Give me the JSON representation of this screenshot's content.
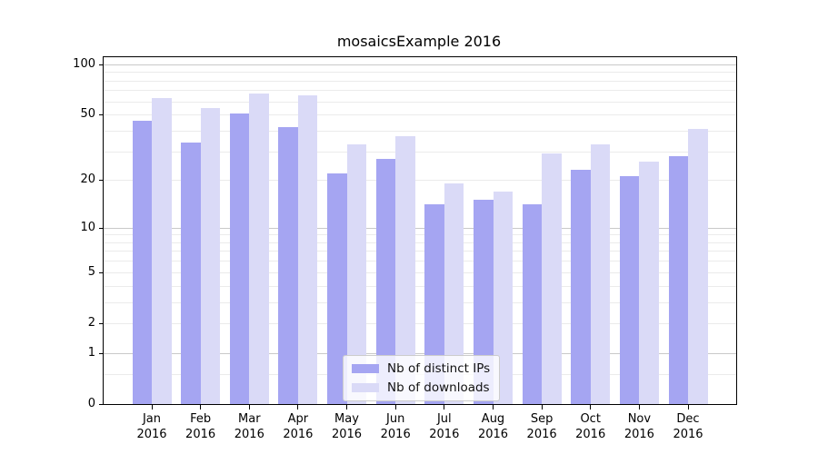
{
  "chart_data": {
    "type": "bar",
    "title": "mosaicsExample 2016",
    "categories": [
      "Jan",
      "Feb",
      "Mar",
      "Apr",
      "May",
      "Jun",
      "Jul",
      "Aug",
      "Sep",
      "Oct",
      "Nov",
      "Dec"
    ],
    "year_label": "2016",
    "series": [
      {
        "name": "Nb of distinct IPs",
        "color": "#a5a5f2",
        "values": [
          46,
          34,
          51,
          42,
          22,
          27,
          14,
          15,
          14,
          23,
          21,
          28
        ]
      },
      {
        "name": "Nb of downloads",
        "color": "#dadaf7",
        "values": [
          63,
          55,
          67,
          65,
          33,
          37,
          19,
          17,
          29,
          33,
          26,
          41
        ]
      }
    ],
    "yticks": [
      100,
      50,
      20,
      10,
      5,
      2,
      1,
      0
    ],
    "ylim": [
      0,
      110
    ],
    "yscale": "log1p",
    "xlabel": "",
    "ylabel": "",
    "grid": true,
    "legend_position": "lower center"
  }
}
